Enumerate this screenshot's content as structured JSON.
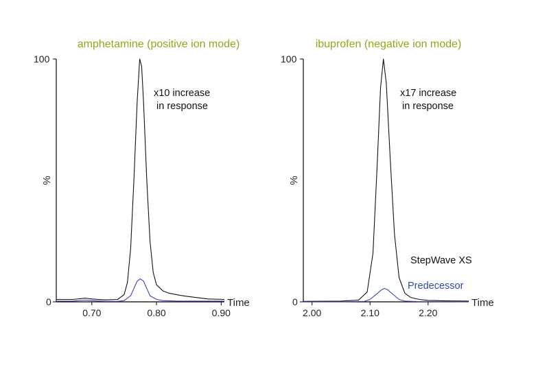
{
  "colors": {
    "title": "#9aa31a",
    "stepwave_line": "#111111",
    "predecessor_line": "#3b46b8",
    "predecessor_text": "#2a4aa8"
  },
  "legend": {
    "stepwave_label": "StepWave XS",
    "predecessor_label": "Predecessor"
  },
  "chart_data": [
    {
      "type": "line",
      "title": "amphetamine (positive ion mode)",
      "xlabel": "Time",
      "ylabel": "%",
      "xlim": [
        0.645,
        0.905
      ],
      "ylim": [
        0,
        100
      ],
      "x_ticks": [
        0.7,
        0.8,
        0.9
      ],
      "x_tick_labels": [
        "0.70",
        "0.80",
        "0.90"
      ],
      "y_tick_labels": [
        "0",
        "100"
      ],
      "annotation": [
        "x10 increase",
        "in response"
      ],
      "series": [
        {
          "name": "StepWave XS",
          "x": [
            0.645,
            0.67,
            0.69,
            0.7,
            0.72,
            0.74,
            0.75,
            0.755,
            0.76,
            0.765,
            0.77,
            0.774,
            0.777,
            0.78,
            0.785,
            0.79,
            0.795,
            0.8,
            0.81,
            0.82,
            0.84,
            0.86,
            0.88,
            0.905
          ],
          "y": [
            1.0,
            1.0,
            1.5,
            1.2,
            0.8,
            1.0,
            3.0,
            8,
            22,
            50,
            82,
            100,
            97,
            82,
            50,
            25,
            12,
            7,
            4.5,
            3.5,
            2.5,
            1.8,
            1.2,
            1.0
          ]
        },
        {
          "name": "Predecessor",
          "x": [
            0.645,
            0.67,
            0.69,
            0.7,
            0.72,
            0.74,
            0.75,
            0.76,
            0.765,
            0.77,
            0.775,
            0.78,
            0.785,
            0.79,
            0.8,
            0.81,
            0.83,
            0.86,
            0.905
          ],
          "y": [
            0.3,
            0.3,
            0.7,
            0.5,
            0.2,
            0.2,
            0.5,
            2.5,
            5.5,
            8.5,
            9.5,
            8.5,
            5.5,
            2.5,
            1.0,
            0.5,
            0.3,
            0.3,
            0.3
          ]
        }
      ]
    },
    {
      "type": "line",
      "title": "ibuprofen (negative ion mode)",
      "xlabel": "Time",
      "ylabel": "%",
      "xlim": [
        1.985,
        2.27
      ],
      "ylim": [
        0,
        100
      ],
      "x_ticks": [
        2.0,
        2.1,
        2.2
      ],
      "x_tick_labels": [
        "2.00",
        "2.10",
        "2.20"
      ],
      "y_tick_labels": [
        "0",
        "100"
      ],
      "annotation": [
        "x17 increase",
        "in response"
      ],
      "series": [
        {
          "name": "StepWave XS",
          "x": [
            1.985,
            2.05,
            2.08,
            2.095,
            2.105,
            2.112,
            2.118,
            2.123,
            2.128,
            2.135,
            2.142,
            2.15,
            2.16,
            2.17,
            2.185,
            2.2,
            2.23,
            2.27
          ],
          "y": [
            0.2,
            0.3,
            0.7,
            4,
            20,
            55,
            88,
            100,
            90,
            58,
            28,
            10,
            3.5,
            1.8,
            1.0,
            0.6,
            0.4,
            0.3
          ]
        },
        {
          "name": "Predecessor",
          "x": [
            1.985,
            2.05,
            2.09,
            2.1,
            2.11,
            2.12,
            2.125,
            2.13,
            2.14,
            2.15,
            2.16,
            2.18,
            2.27
          ],
          "y": [
            0.0,
            0.0,
            0.2,
            1.0,
            3.0,
            5.0,
            5.5,
            5.0,
            3.0,
            1.0,
            0.3,
            0.1,
            0.0
          ]
        }
      ]
    }
  ]
}
